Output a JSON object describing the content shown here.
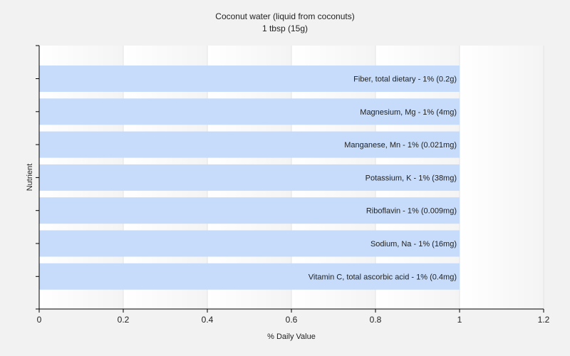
{
  "chart_data": {
    "type": "bar",
    "orientation": "horizontal",
    "title": "Coconut water (liquid from coconuts)",
    "subtitle": "1 tbsp (15g)",
    "xlabel": "% Daily Value",
    "ylabel": "Nutrient",
    "xlim": [
      0,
      1.2
    ],
    "xticks": [
      "0",
      "0.2",
      "0.4",
      "0.6",
      "0.8",
      "1",
      "1.2"
    ],
    "grid": true,
    "bar_color": "#c6dcfa",
    "categories": [
      "Fiber, total dietary - 1% (0.2g)",
      "Magnesium, Mg - 1% (4mg)",
      "Manganese, Mn - 1% (0.021mg)",
      "Potassium, K - 1% (38mg)",
      "Riboflavin - 1% (0.009mg)",
      "Sodium, Na - 1% (16mg)",
      "Vitamin C, total ascorbic acid - 1% (0.4mg)"
    ],
    "values": [
      1,
      1,
      1,
      1,
      1,
      1,
      1
    ]
  }
}
